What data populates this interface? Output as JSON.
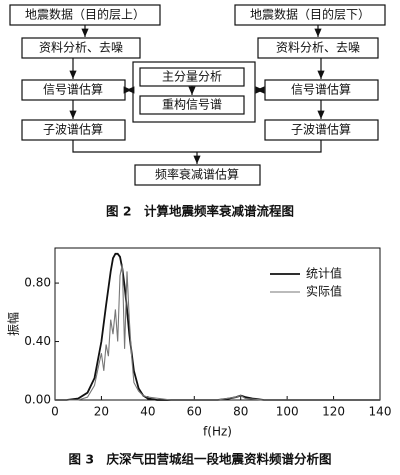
{
  "diagram": {
    "nodes": [
      "地震数据（目的层上）",
      "地震数据（目的层下）",
      "资料分析、去噪",
      "资料分析、去噪",
      "主分量分析",
      "重构信号谱",
      "信号谱估算",
      "信号谱估算",
      "子波谱估算",
      "子波谱估算",
      "频率衰减谱估算"
    ],
    "caption": "图 2　计算地震频率衰减谱流程图"
  },
  "chart_data": {
    "type": "line",
    "caption": "图 3　庆深气田营城组一段地震资料频谱分析图",
    "x_label": "f(Hz)",
    "y_label": "振幅",
    "xlim": [
      0,
      140
    ],
    "xticks": [
      0,
      20,
      40,
      60,
      80,
      100,
      120,
      140
    ],
    "ylim": [
      0,
      1.04
    ],
    "yticks": [
      {
        "value": 0,
        "label": "0.00"
      },
      {
        "value": 0.4,
        "label": "0.40"
      },
      {
        "value": 0.8,
        "label": "0.80"
      }
    ],
    "legend": "upper right",
    "series": [
      {
        "name": "统计值",
        "color": "#111111",
        "x": [
          0,
          5,
          10,
          14,
          17,
          20,
          22,
          24,
          25,
          26,
          27,
          28,
          29,
          30,
          31,
          32,
          34,
          36,
          38,
          40,
          44,
          50,
          60,
          70,
          75,
          78,
          80,
          82,
          85,
          90,
          100,
          120,
          140
        ],
        "values": [
          0,
          0,
          0.01,
          0.05,
          0.15,
          0.4,
          0.65,
          0.88,
          0.97,
          1.0,
          1.0,
          0.98,
          0.9,
          0.78,
          0.62,
          0.45,
          0.2,
          0.08,
          0.03,
          0.01,
          0,
          0,
          0,
          0,
          0.01,
          0.02,
          0.03,
          0.02,
          0.01,
          0,
          0,
          0,
          0
        ]
      },
      {
        "name": "实际值",
        "color": "#777777",
        "x": [
          0,
          10,
          14,
          17,
          19,
          20,
          21,
          22,
          23,
          24,
          25,
          26,
          27,
          28,
          29,
          30,
          31,
          32,
          33,
          34,
          36,
          38,
          40,
          45,
          50,
          60,
          70,
          78,
          80,
          82,
          90,
          100,
          120,
          140
        ],
        "values": [
          0,
          0,
          0.02,
          0.1,
          0.25,
          0.32,
          0.2,
          0.38,
          0.3,
          0.55,
          0.45,
          0.62,
          0.4,
          0.85,
          0.93,
          0.35,
          0.88,
          0.55,
          0.3,
          0.12,
          0.06,
          0.03,
          0.02,
          0.01,
          0,
          0,
          0,
          0.02,
          0.03,
          0.01,
          0,
          0,
          0,
          0
        ]
      }
    ]
  }
}
